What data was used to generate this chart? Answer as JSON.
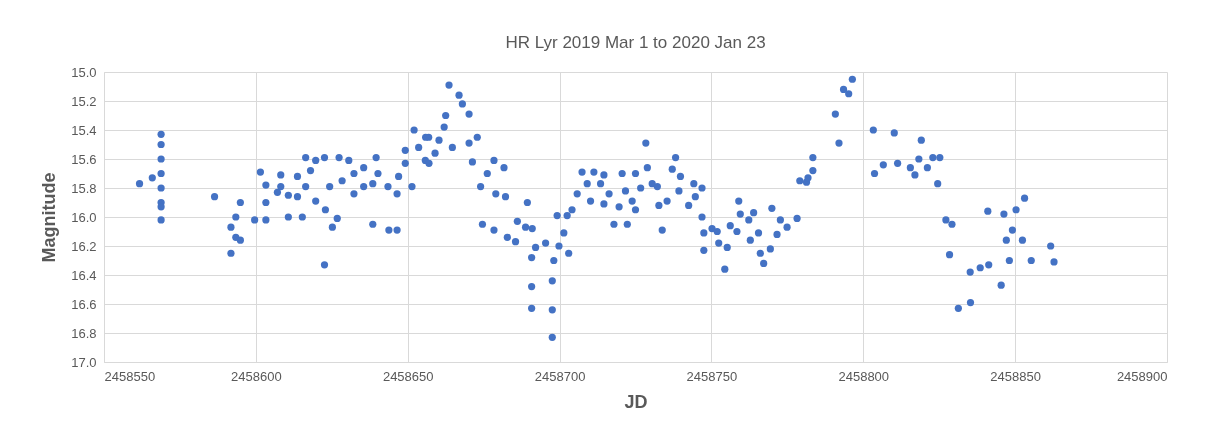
{
  "chart_data": {
    "type": "scatter",
    "title": "HR Lyr 2019 Mar 1 to 2020 Jan 23",
    "xlabel": "JD",
    "ylabel": "Magnitude",
    "xlim": [
      2458550,
      2458900
    ],
    "xticks": [
      2458550,
      2458600,
      2458650,
      2458700,
      2458750,
      2458800,
      2458850,
      2458900
    ],
    "ylim": [
      17.0,
      15.0
    ],
    "yticks": [
      {
        "value": 15.0,
        "label": "15.0"
      },
      {
        "value": 15.2,
        "label": "15.2"
      },
      {
        "value": 15.4,
        "label": "15.4"
      },
      {
        "value": 15.6,
        "label": "15.6"
      },
      {
        "value": 15.8,
        "label": "15.8"
      },
      {
        "value": 16.0,
        "label": "16.0"
      },
      {
        "value": 16.2,
        "label": "16.2"
      },
      {
        "value": 16.4,
        "label": "16.4"
      },
      {
        "value": 16.6,
        "label": "16.6"
      },
      {
        "value": 16.8,
        "label": "16.8"
      },
      {
        "value": 17.0,
        "label": "17.0"
      }
    ],
    "grid": true,
    "marker": "circle",
    "series": [
      {
        "color": "#4472c4",
        "x": [
          2458561.7,
          2458565.9,
          2458568.8,
          2458568.8,
          2458568.8,
          2458568.8,
          2458568.8,
          2458568.8,
          2458568.8,
          2458568.8,
          2458586.4,
          2458591.8,
          2458591.8,
          2458593.4,
          2458593.4,
          2458594.9,
          2458594.9,
          2458599.6,
          2458601.5,
          2458603.3,
          2458603.3,
          2458603.3,
          2458607.1,
          2458608.2,
          2458608.2,
          2458610.7,
          2458610.7,
          2458613.7,
          2458613.7,
          2458615.3,
          2458616.4,
          2458616.4,
          2458618.0,
          2458619.7,
          2458619.7,
          2458622.6,
          2458622.6,
          2458622.9,
          2458624.3,
          2458625.2,
          2458627.4,
          2458626.8,
          2458628.4,
          2458630.6,
          2458632.3,
          2458632.3,
          2458635.5,
          2458635.5,
          2458639.6,
          2458638.5,
          2458638.5,
          2458640.2,
          2458643.5,
          2458643.8,
          2458646.5,
          2458646.5,
          2458647.0,
          2458649.2,
          2458649.2,
          2458651.4,
          2458652.1,
          2458653.6,
          2458655.8,
          2458656.9,
          2458659.0,
          2458655.9,
          2458657.0,
          2458660.3,
          2458662.0,
          2458663.6,
          2458662.5,
          2458664.7,
          2458666.9,
          2458668.0,
          2458670.2,
          2458670.2,
          2458672.9,
          2458671.3,
          2458674.0,
          2458674.6,
          2458676.2,
          2458678.4,
          2458678.4,
          2458679.0,
          2458681.7,
          2458682.2,
          2458682.8,
          2458685.5,
          2458686.1,
          2458689.4,
          2458688.8,
          2458691.0,
          2458690.8,
          2458690.8,
          2458690.8,
          2458692.1,
          2458695.4,
          2458697.6,
          2458697.6,
          2458697.6,
          2458698.1,
          2458699.8,
          2458699.2,
          2458701.4,
          2458703.0,
          2458702.5,
          2458704.1,
          2458705.8,
          2458707.4,
          2458709.1,
          2458710.2,
          2458711.3,
          2458713.5,
          2458714.6,
          2458714.6,
          2458716.3,
          2458717.9,
          2458719.6,
          2458720.6,
          2458721.7,
          2458722.3,
          2458723.9,
          2458725.0,
          2458725.0,
          2458726.7,
          2458728.4,
          2458728.9,
          2458730.5,
          2458732.2,
          2458732.7,
          2458733.8,
          2458735.4,
          2458737.1,
          2458738.2,
          2458739.3,
          2458739.8,
          2458742.5,
          2458744.2,
          2458744.7,
          2458746.9,
          2458746.9,
          2458747.5,
          2458747.5,
          2458750.2,
          2458751.9,
          2458752.4,
          2458754.4,
          2458755.2,
          2458756.2,
          2458758.4,
          2458759.0,
          2458759.5,
          2458762.3,
          2458763.9,
          2458762.8,
          2458765.5,
          2458766.1,
          2458767.2,
          2458769.4,
          2458769.9,
          2458771.6,
          2458772.7,
          2458774.9,
          2458778.2,
          2458779.1,
          2458781.3,
          2458781.8,
          2458783.4,
          2458783.4,
          2458790.8,
          2458792.0,
          2458793.5,
          2458795.2,
          2458796.4,
          2458803.3,
          2458803.7,
          2458806.6,
          2458810.2,
          2458811.3,
          2458815.5,
          2458817.0,
          2458818.3,
          2458819.1,
          2458821.1,
          2458822.9,
          2458825.2,
          2458824.5,
          2458827.2,
          2458829.2,
          2458828.4,
          2458831.3,
          2458835.3,
          2458835.2,
          2458838.5,
          2458841.3,
          2458841.0,
          2458845.4,
          2458846.3,
          2458847.1,
          2458848.1,
          2458849.1,
          2458850.3,
          2458852.4,
          2458853.1,
          2458855.3,
          2458861.7,
          2458862.8
        ],
        "values": [
          15.77,
          15.73,
          15.43,
          15.5,
          15.6,
          15.7,
          15.8,
          15.9,
          15.93,
          16.02,
          15.86,
          16.25,
          16.07,
          16.0,
          16.14,
          15.9,
          16.16,
          16.02,
          15.69,
          15.78,
          15.9,
          16.02,
          15.83,
          15.71,
          15.79,
          15.85,
          16.0,
          15.72,
          15.86,
          16.0,
          15.59,
          15.79,
          15.68,
          15.61,
          15.89,
          15.59,
          16.33,
          15.95,
          15.79,
          16.07,
          15.59,
          16.01,
          15.75,
          15.61,
          15.7,
          15.84,
          15.66,
          15.79,
          15.59,
          15.77,
          16.05,
          15.7,
          15.79,
          16.09,
          15.84,
          16.09,
          15.72,
          15.63,
          15.54,
          15.79,
          15.4,
          15.52,
          15.61,
          15.45,
          15.56,
          15.45,
          15.63,
          15.47,
          15.38,
          15.09,
          15.3,
          15.52,
          15.16,
          15.22,
          15.29,
          15.49,
          15.45,
          15.62,
          15.79,
          16.05,
          15.7,
          15.61,
          16.09,
          15.84,
          15.66,
          15.86,
          16.14,
          16.17,
          16.03,
          15.9,
          16.07,
          16.08,
          16.28,
          16.48,
          16.63,
          16.21,
          16.18,
          16.44,
          16.64,
          16.83,
          16.3,
          16.2,
          15.99,
          16.11,
          16.25,
          15.99,
          15.95,
          15.84,
          15.69,
          15.77,
          15.89,
          15.69,
          15.77,
          15.71,
          15.91,
          15.84,
          16.05,
          15.93,
          15.7,
          15.82,
          16.05,
          15.89,
          15.7,
          15.95,
          15.8,
          15.49,
          15.66,
          15.77,
          15.79,
          15.92,
          16.09,
          15.89,
          15.67,
          15.59,
          15.82,
          15.72,
          15.92,
          15.77,
          15.86,
          15.8,
          16.0,
          16.23,
          16.11,
          16.08,
          16.1,
          16.18,
          16.36,
          16.21,
          16.06,
          16.1,
          15.89,
          15.98,
          16.02,
          15.97,
          16.16,
          16.11,
          16.25,
          16.32,
          16.22,
          15.94,
          16.12,
          16.02,
          16.07,
          16.01,
          15.75,
          15.76,
          15.73,
          15.68,
          15.59,
          15.29,
          15.49,
          15.12,
          15.15,
          15.05,
          15.4,
          15.7,
          15.64,
          15.42,
          15.63,
          15.66,
          15.71,
          15.6,
          15.47,
          15.66,
          15.59,
          15.59,
          15.77,
          16.02,
          16.05,
          16.26,
          16.63,
          16.59,
          16.38,
          16.35,
          16.33,
          15.96,
          16.47,
          15.98,
          16.16,
          16.3,
          16.09,
          15.95,
          16.16,
          15.87,
          16.3,
          16.2,
          16.31
        ]
      }
    ]
  }
}
